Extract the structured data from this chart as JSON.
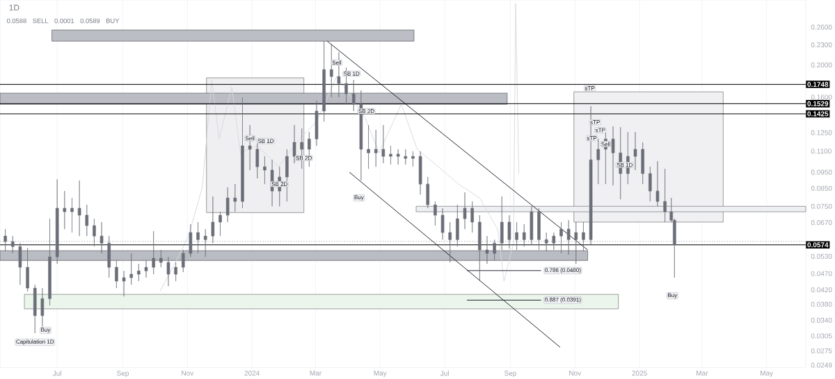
{
  "chart_data": {
    "type": "candlestick",
    "title": "1D",
    "color": "#6b6e78",
    "x": [
      "2023-05-13",
      "2023-05-20",
      "2023-05-27",
      "2023-06-03",
      "2023-06-10",
      "2023-06-17",
      "2023-06-24",
      "2023-07-01",
      "2023-07-08",
      "2023-07-15",
      "2023-07-22",
      "2023-07-29",
      "2023-08-05",
      "2023-08-12",
      "2023-08-19",
      "2023-08-26",
      "2023-09-02",
      "2023-09-09",
      "2023-09-16",
      "2023-09-23",
      "2023-09-30",
      "2023-10-07",
      "2023-10-14",
      "2023-10-21",
      "2023-10-28",
      "2023-11-04",
      "2023-11-11",
      "2023-11-18",
      "2023-11-25",
      "2023-12-02",
      "2023-12-09",
      "2023-12-16",
      "2023-12-23",
      "2023-12-30",
      "2024-01-06",
      "2024-01-13",
      "2024-01-20",
      "2024-01-27",
      "2024-02-03",
      "2024-02-10",
      "2024-02-17",
      "2024-02-24",
      "2024-03-02",
      "2024-03-09",
      "2024-03-16",
      "2024-03-23",
      "2024-03-30",
      "2024-04-06",
      "2024-04-13",
      "2024-04-20",
      "2024-04-27",
      "2024-05-04",
      "2024-05-11",
      "2024-05-18",
      "2024-05-25",
      "2024-06-01",
      "2024-06-08",
      "2024-06-15",
      "2024-06-22",
      "2024-06-29",
      "2024-07-06",
      "2024-07-13",
      "2024-07-20",
      "2024-07-27",
      "2024-08-03",
      "2024-08-10",
      "2024-08-17",
      "2024-08-24",
      "2024-08-31",
      "2024-09-07",
      "2024-09-14",
      "2024-09-21",
      "2024-09-28",
      "2024-10-05",
      "2024-10-12",
      "2024-10-19",
      "2024-10-26",
      "2024-11-02",
      "2024-11-09",
      "2024-11-16",
      "2024-11-23",
      "2024-11-30",
      "2024-12-07",
      "2024-12-14",
      "2024-12-21",
      "2024-12-28",
      "2025-01-04",
      "2025-01-11",
      "2025-01-18",
      "2025-01-25",
      "2025-01-31",
      "2025-02-03"
    ],
    "ohlc": [
      [
        0.061,
        0.064,
        0.0549,
        0.0587
      ],
      [
        0.0587,
        0.061,
        0.0541,
        0.0567
      ],
      [
        0.0567,
        0.0581,
        0.0435,
        0.0491
      ],
      [
        0.0491,
        0.0562,
        0.0415,
        0.0425
      ],
      [
        0.0425,
        0.0435,
        0.0311,
        0.0351
      ],
      [
        0.0351,
        0.0425,
        0.0326,
        0.0395
      ],
      [
        0.0395,
        0.0688,
        0.0377,
        0.0528
      ],
      [
        0.0528,
        0.0905,
        0.0503,
        0.074
      ],
      [
        0.074,
        0.0834,
        0.064,
        0.0722
      ],
      [
        0.0722,
        0.0795,
        0.0625,
        0.074
      ],
      [
        0.074,
        0.0897,
        0.061,
        0.0705
      ],
      [
        0.0705,
        0.0758,
        0.061,
        0.0656
      ],
      [
        0.0656,
        0.0688,
        0.0567,
        0.061
      ],
      [
        0.061,
        0.0672,
        0.0541,
        0.0581
      ],
      [
        0.0581,
        0.061,
        0.0457,
        0.0491
      ],
      [
        0.0491,
        0.0515,
        0.0425,
        0.0446
      ],
      [
        0.0446,
        0.0479,
        0.0401,
        0.0457
      ],
      [
        0.0457,
        0.0541,
        0.0435,
        0.0468
      ],
      [
        0.0468,
        0.0503,
        0.0446,
        0.0479
      ],
      [
        0.0479,
        0.0515,
        0.0457,
        0.0491
      ],
      [
        0.0491,
        0.0631,
        0.0468,
        0.0523
      ],
      [
        0.0523,
        0.0554,
        0.0491,
        0.0508
      ],
      [
        0.0508,
        0.0528,
        0.0431,
        0.0468
      ],
      [
        0.0468,
        0.0508,
        0.0446,
        0.0491
      ],
      [
        0.0491,
        0.0554,
        0.0475,
        0.0541
      ],
      [
        0.0541,
        0.0662,
        0.0528,
        0.0625
      ],
      [
        0.0625,
        0.0672,
        0.0541,
        0.0595
      ],
      [
        0.0595,
        0.064,
        0.0528,
        0.061
      ],
      [
        0.061,
        0.0803,
        0.0581,
        0.0672
      ],
      [
        0.0672,
        0.0722,
        0.061,
        0.0705
      ],
      [
        0.0705,
        0.0855,
        0.0672,
        0.0795
      ],
      [
        0.0795,
        0.0875,
        0.0722,
        0.0776
      ],
      [
        0.0776,
        0.1598,
        0.074,
        0.1141
      ],
      [
        0.1141,
        0.1318,
        0.0964,
        0.1114
      ],
      [
        0.1114,
        0.1197,
        0.091,
        0.0987
      ],
      [
        0.0987,
        0.1061,
        0.0875,
        0.0964
      ],
      [
        0.0964,
        0.1036,
        0.075,
        0.0834
      ],
      [
        0.0834,
        0.0987,
        0.075,
        0.0919
      ],
      [
        0.0919,
        0.1114,
        0.0776,
        0.1061
      ],
      [
        0.1061,
        0.1318,
        0.1011,
        0.1169
      ],
      [
        0.1169,
        0.1287,
        0.0973,
        0.1114
      ],
      [
        0.1114,
        0.1256,
        0.0987,
        0.1197
      ],
      [
        0.1197,
        0.156,
        0.1141,
        0.1452
      ],
      [
        0.1452,
        0.2361,
        0.135,
        0.1938
      ],
      [
        0.1938,
        0.2316,
        0.1598,
        0.1847
      ],
      [
        0.1847,
        0.2186,
        0.1598,
        0.176
      ],
      [
        0.176,
        0.1966,
        0.1523,
        0.1637
      ],
      [
        0.1637,
        0.1803,
        0.1452,
        0.1523
      ],
      [
        0.1523,
        0.1677,
        0.0897,
        0.1114
      ],
      [
        0.1114,
        0.1318,
        0.0973,
        0.1087
      ],
      [
        0.1087,
        0.1275,
        0.0987,
        0.1114
      ],
      [
        0.1114,
        0.1318,
        0.1011,
        0.1061
      ],
      [
        0.1061,
        0.1141,
        0.1002,
        0.1077
      ],
      [
        0.1077,
        0.1114,
        0.1002,
        0.1061
      ],
      [
        0.1061,
        0.1114,
        0.1002,
        0.1046
      ],
      [
        0.1046,
        0.1098,
        0.0987,
        0.1061
      ],
      [
        0.1061,
        0.1098,
        0.0814,
        0.0875
      ],
      [
        0.0875,
        0.0919,
        0.074,
        0.0758
      ],
      [
        0.0758,
        0.0776,
        0.0656,
        0.0705
      ],
      [
        0.0705,
        0.074,
        0.0595,
        0.0625
      ],
      [
        0.0625,
        0.0672,
        0.0508,
        0.0595
      ],
      [
        0.0595,
        0.0758,
        0.0567,
        0.0688
      ],
      [
        0.0688,
        0.0826,
        0.064,
        0.074
      ],
      [
        0.074,
        0.0776,
        0.0625,
        0.0672
      ],
      [
        0.0672,
        0.0705,
        0.0446,
        0.0554
      ],
      [
        0.0554,
        0.061,
        0.0503,
        0.0541
      ],
      [
        0.0541,
        0.0595,
        0.0515,
        0.0581
      ],
      [
        0.0581,
        0.0803,
        0.0554,
        0.0672
      ],
      [
        0.0672,
        0.0705,
        0.0559,
        0.0595
      ],
      [
        0.0595,
        0.0672,
        0.0554,
        0.0625
      ],
      [
        0.0625,
        0.0662,
        0.0567,
        0.0595
      ],
      [
        0.0595,
        0.075,
        0.0573,
        0.0722
      ],
      [
        0.0722,
        0.074,
        0.0554,
        0.0595
      ],
      [
        0.0595,
        0.0625,
        0.0549,
        0.0581
      ],
      [
        0.0581,
        0.0625,
        0.0554,
        0.061
      ],
      [
        0.061,
        0.0672,
        0.0541,
        0.064
      ],
      [
        0.064,
        0.0681,
        0.0536,
        0.0595
      ],
      [
        0.0595,
        0.0672,
        0.0503,
        0.0625
      ],
      [
        0.0625,
        0.0672,
        0.0549,
        0.0595
      ],
      [
        0.0595,
        0.1502,
        0.0576,
        0.1036
      ],
      [
        0.1036,
        0.1197,
        0.0875,
        0.1114
      ],
      [
        0.1114,
        0.1256,
        0.0875,
        0.1197
      ],
      [
        0.1197,
        0.1306,
        0.0867,
        0.1087
      ],
      [
        0.1087,
        0.1299,
        0.0787,
        0.0941
      ],
      [
        0.0941,
        0.1256,
        0.0875,
        0.1061
      ],
      [
        0.1061,
        0.1256,
        0.0964,
        0.1114
      ],
      [
        0.1114,
        0.1169,
        0.0875,
        0.0941
      ],
      [
        0.0941,
        0.0987,
        0.0776,
        0.0834
      ],
      [
        0.0834,
        0.1026,
        0.075,
        0.0776
      ],
      [
        0.0776,
        0.0973,
        0.0672,
        0.0722
      ],
      [
        0.0722,
        0.0795,
        0.0672,
        0.0681
      ],
      [
        0.0681,
        0.0688,
        0.0457,
        0.0574
      ]
    ],
    "series": [
      {
        "type": "area",
        "color": "#efeff1",
        "x": [
          "2023-11-19",
          "2024-02-19"
        ],
        "values": [
          null,
          null
        ],
        "lower": [
          0.0718,
          0.0718
        ],
        "upper": [
          0.183,
          0.183
        ]
      },
      {
        "type": "area",
        "color": "#f0f0f2",
        "x": [
          "2024-10-31",
          "2025-03-21"
        ],
        "values": [
          null,
          null
        ],
        "lower": [
          0.0672,
          0.0672
        ],
        "upper": [
          0.166,
          0.166
        ]
      },
      {
        "type": "area",
        "color": "#ebf5ec",
        "x": [
          "2023-05-31",
          "2024-12-12"
        ],
        "values": [
          null,
          null
        ],
        "lower": [
          0.0368,
          0.0368
        ],
        "upper": [
          0.0407,
          0.0407
        ]
      },
      {
        "type": "area",
        "color": "#bcbec5",
        "x": [
          "2023-06-26",
          "2024-06-02"
        ],
        "values": [
          null,
          null
        ],
        "lower": [
          0.236,
          0.236
        ],
        "upper": [
          0.255,
          0.255
        ]
      },
      {
        "type": "area",
        "color": "#bbbdc4",
        "x": [
          "2023-05-08",
          "2024-08-29"
        ],
        "values": [
          null,
          null
        ],
        "lower": [
          0.1523,
          0.1523
        ],
        "upper": [
          0.1645,
          0.1645
        ]
      },
      {
        "type": "area",
        "color": "#babcc3",
        "x": [
          "2023-05-08",
          "2024-11-13"
        ],
        "values": [
          null,
          null
        ],
        "lower": [
          0.0515,
          0.0515
        ],
        "upper": [
          0.0551,
          0.0551
        ]
      },
      {
        "type": "area",
        "color": "#eeeff2",
        "x": [
          "2024-06-04",
          "2025-06-07"
        ],
        "values": [
          null,
          null
        ],
        "lower": [
          0.0722,
          0.0722
        ],
        "upper": [
          0.075,
          0.075
        ]
      },
      {
        "type": "line",
        "color": "#d6d8de",
        "x": [
          "2023-10-06",
          "2023-10-20",
          "2023-11-02",
          "2023-11-15",
          "2023-11-24",
          "2023-12-01",
          "2023-12-13",
          "2023-12-21",
          "2024-01-06",
          "2024-01-26",
          "2024-02-15",
          "2024-03-02",
          "2024-03-21",
          "2024-04-04",
          "2024-04-17",
          "2024-04-30",
          "2024-05-21",
          "2024-06-05",
          "2024-06-25",
          "2024-07-14",
          "2024-08-03",
          "2024-08-20",
          "2024-08-26",
          "2024-09-04",
          "2024-09-06",
          "2024-09-09"
        ],
        "values": [
          0.0415,
          0.0503,
          0.061,
          0.0855,
          0.18,
          0.1197,
          0.1718,
          0.1087,
          0.1141,
          0.0987,
          0.1197,
          0.135,
          0.1847,
          0.1598,
          0.1383,
          0.1087,
          0.1523,
          0.1114,
          0.0987,
          0.0875,
          0.0795,
          0.064,
          0.0446,
          0.0581,
          0.3063,
          0.0941
        ]
      },
      {
        "type": "line",
        "color": "#131722",
        "x": [
          "2024-03-12",
          "2024-11-13"
        ],
        "values": [
          0.236,
          0.0554
        ]
      },
      {
        "type": "line",
        "color": "#131722",
        "x": [
          "2024-04-02",
          "2024-10-18"
        ],
        "values": [
          0.095,
          0.0282
        ]
      },
      {
        "type": "line",
        "color": "#131722",
        "x": [
          "2024-07-22",
          "2024-09-30"
        ],
        "values": [
          0.048,
          0.048
        ]
      },
      {
        "type": "line",
        "color": "#131722",
        "x": [
          "2024-07-22",
          "2024-09-30"
        ],
        "values": [
          0.0391,
          0.0391
        ]
      }
    ],
    "xlim": [
      "2023-05-08",
      "2025-06-07"
    ],
    "xticks": [
      {
        "value": "2023-07-01",
        "label": "Jul"
      },
      {
        "value": "2023-09-01",
        "label": "Sep"
      },
      {
        "value": "2023-11-01",
        "label": "Nov"
      },
      {
        "value": "2024-01-01",
        "label": "2024"
      },
      {
        "value": "2024-03-01",
        "label": "Mar"
      },
      {
        "value": "2024-05-01",
        "label": "May"
      },
      {
        "value": "2024-07-01",
        "label": "Jul"
      },
      {
        "value": "2024-09-01",
        "label": "Sep"
      },
      {
        "value": "2024-11-01",
        "label": "Nov"
      },
      {
        "value": "2025-01-01",
        "label": "2025"
      },
      {
        "value": "2025-03-01",
        "label": "Mar"
      },
      {
        "value": "2025-05-01",
        "label": "May"
      }
    ],
    "ylim": [
      0.0245,
      0.314
    ],
    "yticks": [
      {
        "value": 0.26,
        "label": "0.2600"
      },
      {
        "value": 0.23,
        "label": "0.2300"
      },
      {
        "value": 0.2,
        "label": "0.2000"
      },
      {
        "value": 0.16,
        "label": "0.1600"
      },
      {
        "value": 0.125,
        "label": "0.1250"
      },
      {
        "value": 0.11,
        "label": "0.1100"
      },
      {
        "value": 0.095,
        "label": "0.0950"
      },
      {
        "value": 0.085,
        "label": "0.0850"
      },
      {
        "value": 0.075,
        "label": "0.0750"
      },
      {
        "value": 0.067,
        "label": "0.0670"
      },
      {
        "value": 0.053,
        "label": "0.0530"
      },
      {
        "value": 0.047,
        "label": "0.0470"
      },
      {
        "value": 0.042,
        "label": "0.0420"
      },
      {
        "value": 0.038,
        "label": "0.0380"
      },
      {
        "value": 0.034,
        "label": "0.0340"
      },
      0.0305,
      0.0275,
      0.0249
    ],
    "log": "y",
    "grid": "x",
    "ref_lines": [
      {
        "axis": "y",
        "value": 0.1748,
        "label": "0.1748"
      },
      {
        "axis": "y",
        "value": 0.1529,
        "label": "0.1529"
      },
      {
        "axis": "y",
        "value": 0.1425,
        "label": "0.1425"
      },
      {
        "axis": "y",
        "value": 0.0588,
        "line_style": "dotted",
        "color": "#9598a1"
      },
      {
        "axis": "y",
        "value": 0.0574,
        "label": "0.0574"
      }
    ],
    "annotations": [
      "0.0588",
      "SELL",
      "0.0001",
      "0.0589",
      "BUY",
      {
        "text": "Capitulation 1D",
        "x": "2023-06-10",
        "y": 0.0311
      },
      {
        "text": "Buy",
        "x": "2023-06-20",
        "y": 0.0317
      },
      {
        "text": "Sell",
        "x": "2023-12-30",
        "y": 0.1203
      },
      {
        "text": "SB 1D",
        "x": "2024-01-14",
        "y": 0.118
      },
      {
        "text": "SB 2D",
        "x": "2024-01-27",
        "y": 0.0875
      },
      {
        "text": "SB 2D",
        "x": "2024-02-19",
        "y": 0.1049
      },
      {
        "text": "Sell",
        "x": "2024-03-21",
        "y": 0.2034
      },
      {
        "text": "SB 1D",
        "x": "2024-04-04",
        "y": 0.1883
      },
      {
        "text": "SB 2D",
        "x": "2024-04-18",
        "y": 0.1452
      },
      {
        "text": "Buy",
        "x": "2024-04-11",
        "y": 0.0795
      },
      {
        "text": "sTP",
        "x": "2024-11-15",
        "y": 0.1702
      },
      {
        "text": "sTP",
        "x": "2024-11-20",
        "y": 0.1344
      },
      {
        "text": "sTP",
        "x": "2024-11-25",
        "y": 0.1272
      },
      {
        "text": "sTP",
        "x": "2024-11-17",
        "y": 0.1203
      },
      {
        "text": "Sell",
        "x": "2024-11-30",
        "y": 0.1155
      },
      {
        "text": "SB 1D",
        "x": "2024-12-18",
        "y": 0.0999
      },
      {
        "text": "Buy",
        "x": "2025-02-01",
        "y": 0.0403
      },
      {
        "text": "0.786 (0.0480)",
        "x": "2024-09-30",
        "y": 0.048
      },
      {
        "text": "0.887 (0.0391)",
        "x": "2024-09-30",
        "y": 0.0391
      }
    ]
  }
}
